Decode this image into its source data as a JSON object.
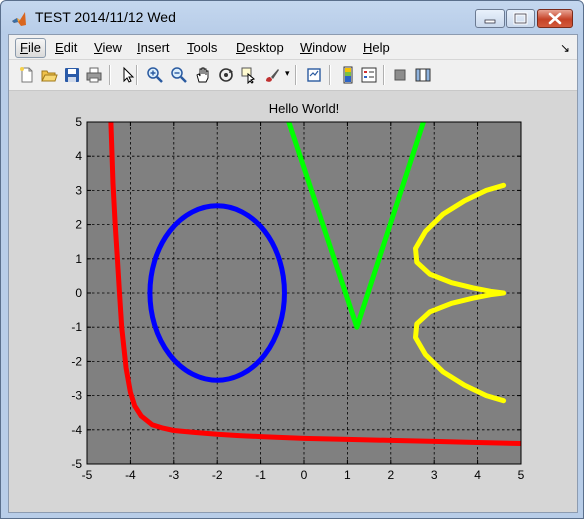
{
  "window": {
    "title": "TEST 2014/11/12 Wed"
  },
  "menu": [
    {
      "label": "File",
      "u": "F",
      "rest": "ile",
      "active": true
    },
    {
      "label": "Edit",
      "u": "E",
      "rest": "dit"
    },
    {
      "label": "View",
      "u": "V",
      "rest": "iew"
    },
    {
      "label": "Insert",
      "u": "I",
      "rest": "nsert"
    },
    {
      "label": "Tools",
      "u": "T",
      "rest": "ools"
    },
    {
      "label": "Desktop",
      "u": "D",
      "rest": "esktop"
    },
    {
      "label": "Window",
      "u": "W",
      "rest": "indow"
    },
    {
      "label": "Help",
      "u": "H",
      "rest": "elp"
    }
  ],
  "toolbar": [
    "new-figure-icon",
    "open-file-icon",
    "save-icon",
    "print-icon",
    "select-arrow-icon",
    "zoom-in-icon",
    "zoom-out-icon",
    "pan-hand-icon",
    "rotate-3d-icon",
    "data-cursor-icon",
    "brush-icon",
    "link-plot-icon",
    "colorbar-icon",
    "legend-icon",
    "hide-plot-tools-icon",
    "show-plot-tools-icon"
  ],
  "chart_data": {
    "type": "line",
    "title": "Hello World!",
    "xlim": [
      -5,
      5
    ],
    "ylim": [
      -5,
      5
    ],
    "xticks": [
      -5,
      -4,
      -3,
      -2,
      -1,
      0,
      1,
      2,
      3,
      4,
      5
    ],
    "yticks": [
      -5,
      -4,
      -3,
      -2,
      -1,
      0,
      1,
      2,
      3,
      4,
      5
    ],
    "grid": true,
    "grid_style": "dashed",
    "axes_background": "#808080",
    "series": [
      {
        "key": "red",
        "color": "#ff0000",
        "kind": "hyperbola-like",
        "x": [
          -4.45,
          -4.4,
          -4.35,
          -4.3,
          -4.25,
          -4.2,
          -4.1,
          -4.0,
          -3.9,
          -3.75,
          -3.5,
          -3.25,
          -3.0,
          -2.5,
          -2.0,
          -1.5,
          -1.0,
          0.0,
          1.0,
          2.0,
          3.0,
          4.0,
          5.0
        ],
        "y": [
          5.0,
          3.2,
          2.0,
          1.0,
          0.0,
          -1.0,
          -2.2,
          -2.9,
          -3.3,
          -3.6,
          -3.85,
          -3.95,
          -4.02,
          -4.08,
          -4.13,
          -4.17,
          -4.2,
          -4.25,
          -4.28,
          -4.31,
          -4.34,
          -4.37,
          -4.4
        ]
      },
      {
        "key": "blue",
        "color": "#0000ff",
        "kind": "ellipse",
        "center": [
          -2.0,
          0.0
        ],
        "rx": 1.55,
        "ry": 2.55
      },
      {
        "key": "green",
        "color": "#00ff00",
        "kind": "v",
        "x": [
          -0.35,
          1.22,
          2.75
        ],
        "y": [
          5.0,
          -1.0,
          5.0
        ]
      },
      {
        "key": "yellow",
        "color": "#ffff00",
        "kind": "wave",
        "x": [
          4.6,
          4.2,
          3.7,
          3.2,
          2.8,
          2.57,
          2.6,
          2.9,
          3.4,
          3.9,
          4.3,
          4.6,
          4.3,
          3.9,
          3.4,
          2.9,
          2.6,
          2.57,
          2.8,
          3.2,
          3.7,
          4.2,
          4.6
        ],
        "y": [
          3.15,
          3.0,
          2.7,
          2.3,
          1.8,
          1.3,
          0.9,
          0.55,
          0.3,
          0.15,
          0.05,
          0.0,
          -0.05,
          -0.15,
          -0.3,
          -0.55,
          -0.9,
          -1.3,
          -1.8,
          -2.3,
          -2.7,
          -3.0,
          -3.15
        ]
      }
    ]
  }
}
